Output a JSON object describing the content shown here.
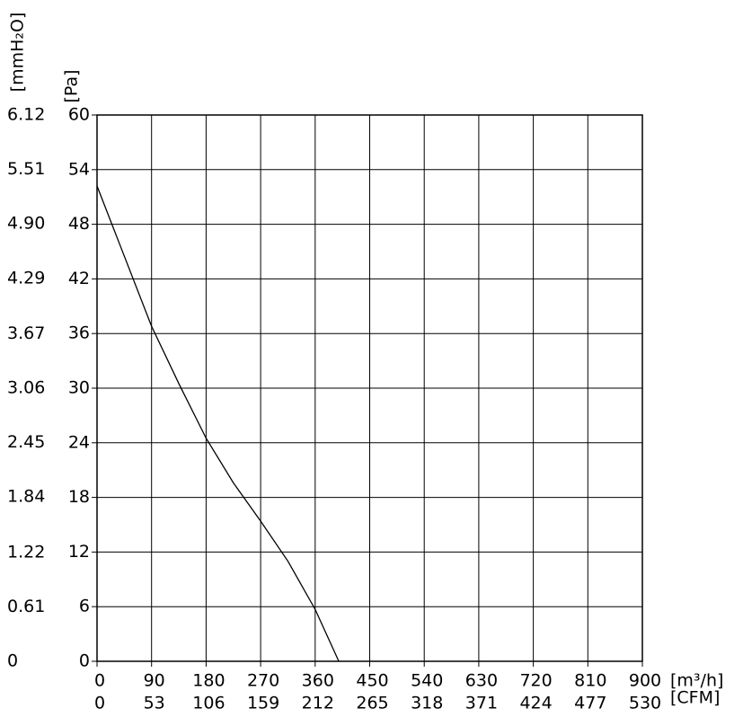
{
  "chart_data": {
    "type": "line",
    "y_label": "[Pa]",
    "y2_label": "[mmH₂O]",
    "x_label": "[m³/h]",
    "x2_label": "[CFM]",
    "x": [
      0,
      45,
      90,
      135,
      180,
      225,
      270,
      315,
      360,
      399
    ],
    "series": [
      {
        "color": "#000000",
        "values": [
          52.2,
          44.5,
          36.8,
          30.5,
          24.5,
          19.6,
          15.4,
          11.0,
          5.7,
          0
        ]
      }
    ],
    "xlim": [
      0,
      900
    ],
    "xticks": [
      0,
      90,
      180,
      270,
      360,
      450,
      540,
      630,
      720,
      810,
      900
    ],
    "x2lim": [
      0,
      530
    ],
    "x2ticks": [
      0,
      53,
      106,
      159,
      212,
      265,
      318,
      371,
      424,
      477,
      530
    ],
    "ylim": [
      0,
      60
    ],
    "yticks": [
      0,
      6,
      12,
      18,
      24,
      30,
      36,
      42,
      48,
      54,
      60
    ],
    "y2lim": [
      0,
      6.12
    ],
    "y2ticks": [
      0,
      0.61,
      1.22,
      1.84,
      2.45,
      3.06,
      3.67,
      4.29,
      {
        "value": 4.9,
        "label": "4.90"
      },
      5.51,
      6.12
    ],
    "grid": true
  }
}
